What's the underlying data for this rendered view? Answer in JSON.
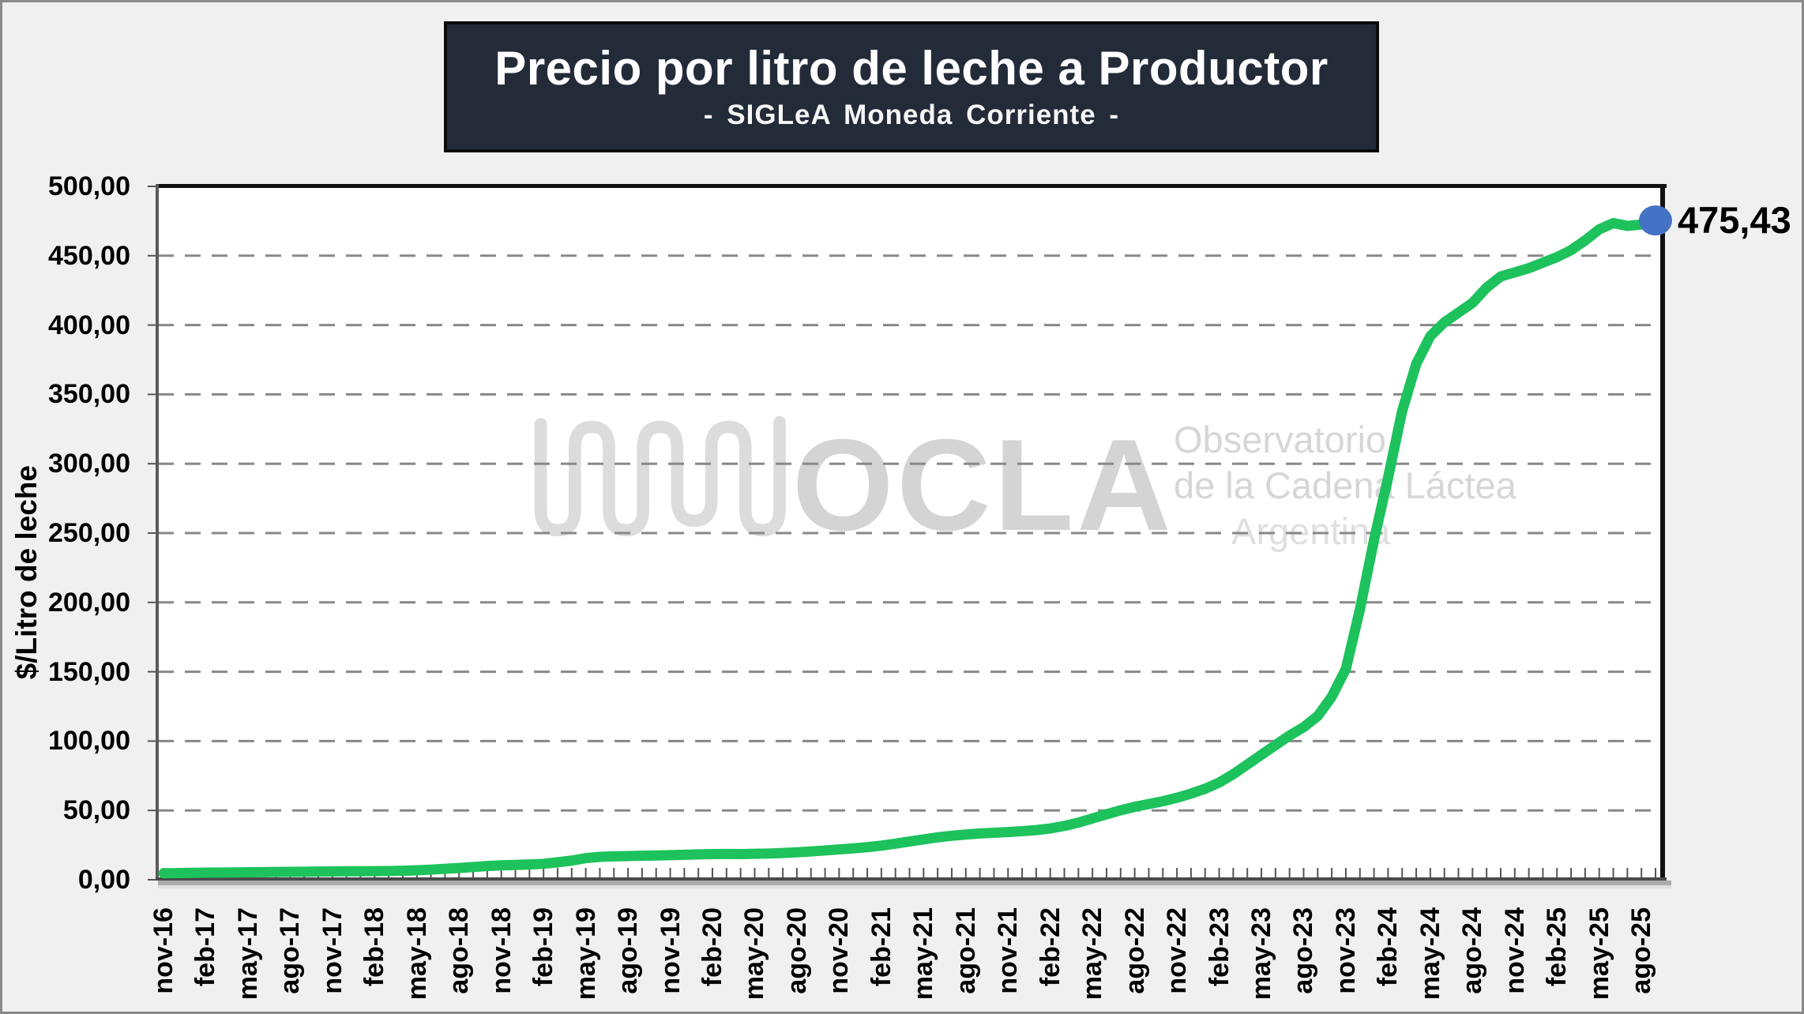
{
  "frame": {
    "background_color": "#F0F0F0",
    "border_color": "#8a8a8a"
  },
  "title_box": {
    "title": "Precio por litro de leche a Productor",
    "subtitle": "- SIGLeA Moneda Corriente -",
    "bg_color": "#232B38",
    "text_color": "#FFFFFF"
  },
  "watermark": {
    "acronym": "OCLA",
    "line1": "Observatorio",
    "line2": "de la Cadena Láctea",
    "line3": "Argentina",
    "color": "#D5D5D5",
    "logo": "milk-wave-squiggle-icon"
  },
  "chart_data": {
    "type": "line",
    "title": "Precio por litro de leche a Productor",
    "subtitle": "- SIGLeA Moneda Corriente -",
    "xlabel": "",
    "ylabel": "$/Litro de leche",
    "ylim": [
      0,
      500
    ],
    "y_tick_step": 50,
    "y_tick_labels": [
      "0,00",
      "50,00",
      "100,00",
      "150,00",
      "200,00",
      "250,00",
      "300,00",
      "350,00",
      "400,00",
      "450,00",
      "500,00"
    ],
    "x_start": "nov-16",
    "x_end": "sep-25",
    "x_frequency": "monthly",
    "x_tick_every_months": 3,
    "x_tick_labels": [
      "nov-16",
      "feb-17",
      "may-17",
      "ago-17",
      "nov-17",
      "feb-18",
      "may-18",
      "ago-18",
      "nov-18",
      "feb-19",
      "may-19",
      "ago-19",
      "nov-19",
      "feb-20",
      "may-20",
      "ago-20",
      "nov-20",
      "feb-21",
      "may-21",
      "ago-21",
      "nov-21",
      "feb-22",
      "may-22",
      "ago-22",
      "nov-22",
      "feb-23",
      "may-23",
      "ago-23",
      "nov-23",
      "feb-24",
      "may-24",
      "ago-24",
      "nov-24",
      "feb-25",
      "may-25",
      "ago-25"
    ],
    "grid": "horizontal-dashed",
    "grid_color": "#888888",
    "legend": "none",
    "series": [
      {
        "color": "#1DC25C",
        "values": [
          4.7,
          4.8,
          5.0,
          5.1,
          5.2,
          5.3,
          5.4,
          5.5,
          5.6,
          5.7,
          5.8,
          5.9,
          6.0,
          6.1,
          6.1,
          6.2,
          6.3,
          6.5,
          6.8,
          7.3,
          7.9,
          8.5,
          9.2,
          9.9,
          10.4,
          10.7,
          11.0,
          11.5,
          12.6,
          13.8,
          15.6,
          16.5,
          16.9,
          17.1,
          17.3,
          17.5,
          17.7,
          18.0,
          18.3,
          18.5,
          18.6,
          18.5,
          18.7,
          18.9,
          19.3,
          19.8,
          20.4,
          21.1,
          21.9,
          22.6,
          23.5,
          24.6,
          26.0,
          27.6,
          29.1,
          30.6,
          31.7,
          32.6,
          33.4,
          33.9,
          34.4,
          35.0,
          35.8,
          37.0,
          38.8,
          41.2,
          44.2,
          47.2,
          50.1,
          52.6,
          54.6,
          56.6,
          59.1,
          62.1,
          65.6,
          70.1,
          76.1,
          83.1,
          90.1,
          97.1,
          104.0,
          110.0,
          118.0,
          132.0,
          152.0,
          195.0,
          245.0,
          290.0,
          338.0,
          372.0,
          392.0,
          402.0,
          409.0,
          416.0,
          427.0,
          435.0,
          438.0,
          441.0,
          445.0,
          449.0,
          454.0,
          461.0,
          469.0,
          473.5,
          471.5,
          472.5,
          475.43
        ]
      }
    ],
    "end_point": {
      "label": "475,43",
      "value": 475.43,
      "marker_color": "#4472C4"
    }
  }
}
